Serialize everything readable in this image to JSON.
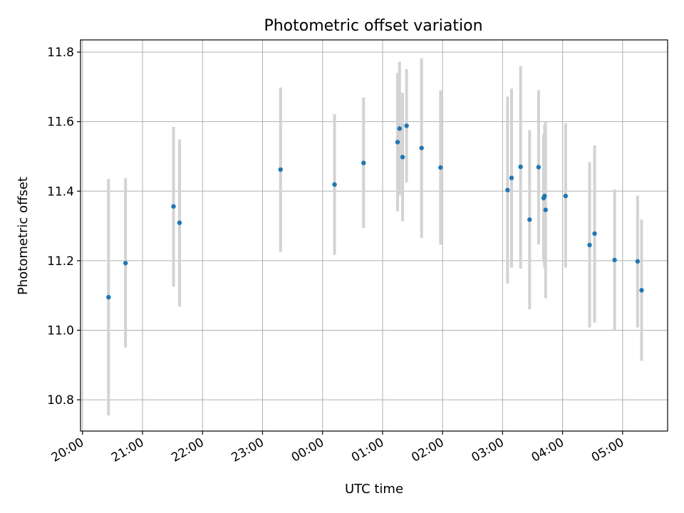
{
  "chart_data": {
    "type": "scatter",
    "title": "Photometric offset variation",
    "xlabel": "UTC time",
    "ylabel": "Photometric offset",
    "x_axis": {
      "kind": "time",
      "range": [
        "19:58",
        "05:45"
      ],
      "day_boundary": "00:00",
      "ticks": [
        "20:00",
        "21:00",
        "22:00",
        "23:00",
        "00:00",
        "01:00",
        "02:00",
        "03:00",
        "04:00",
        "05:00"
      ]
    },
    "y_axis": {
      "range": [
        10.71,
        11.835
      ],
      "ticks": [
        "10.8",
        "11.0",
        "11.2",
        "11.4",
        "11.6",
        "11.8"
      ]
    },
    "grid": true,
    "colors": {
      "point": "#1f77b4",
      "errorbar": "#d3d3d3",
      "grid": "#b0b0b0"
    },
    "series": [
      {
        "points": [
          {
            "x": "20:26",
            "y": 11.095,
            "ylow": 10.755,
            "yhigh": 11.435
          },
          {
            "x": "20:43",
            "y": 11.193,
            "ylow": 10.95,
            "yhigh": 11.437
          },
          {
            "x": "21:31",
            "y": 11.356,
            "ylow": 11.125,
            "yhigh": 11.585
          },
          {
            "x": "21:37",
            "y": 11.309,
            "ylow": 11.068,
            "yhigh": 11.549
          },
          {
            "x": "23:18",
            "y": 11.462,
            "ylow": 11.225,
            "yhigh": 11.698
          },
          {
            "x": "00:12",
            "y": 11.419,
            "ylow": 11.217,
            "yhigh": 11.621
          },
          {
            "x": "00:41",
            "y": 11.481,
            "ylow": 11.294,
            "yhigh": 11.669
          },
          {
            "x": "01:15",
            "y": 11.541,
            "ylow": 11.342,
            "yhigh": 11.74
          },
          {
            "x": "01:17",
            "y": 11.58,
            "ylow": 11.388,
            "yhigh": 11.772
          },
          {
            "x": "01:20",
            "y": 11.498,
            "ylow": 11.313,
            "yhigh": 11.683
          },
          {
            "x": "01:24",
            "y": 11.588,
            "ylow": 11.425,
            "yhigh": 11.751
          },
          {
            "x": "01:39",
            "y": 11.524,
            "ylow": 11.265,
            "yhigh": 11.782
          },
          {
            "x": "01:58",
            "y": 11.468,
            "ylow": 11.246,
            "yhigh": 11.69
          },
          {
            "x": "03:05",
            "y": 11.403,
            "ylow": 11.134,
            "yhigh": 11.672
          },
          {
            "x": "03:09",
            "y": 11.438,
            "ylow": 11.18,
            "yhigh": 11.695
          },
          {
            "x": "03:18",
            "y": 11.47,
            "ylow": 11.177,
            "yhigh": 11.76
          },
          {
            "x": "03:27",
            "y": 11.318,
            "ylow": 11.06,
            "yhigh": 11.575
          },
          {
            "x": "03:36",
            "y": 11.469,
            "ylow": 11.247,
            "yhigh": 11.69
          },
          {
            "x": "03:41",
            "y": 11.38,
            "ylow": 11.196,
            "yhigh": 11.564
          },
          {
            "x": "03:42",
            "y": 11.386,
            "ylow": 11.18,
            "yhigh": 11.592
          },
          {
            "x": "03:43",
            "y": 11.346,
            "ylow": 11.092,
            "yhigh": 11.6
          },
          {
            "x": "04:03",
            "y": 11.386,
            "ylow": 11.18,
            "yhigh": 11.595
          },
          {
            "x": "04:27",
            "y": 11.245,
            "ylow": 11.008,
            "yhigh": 11.483
          },
          {
            "x": "04:32",
            "y": 11.278,
            "ylow": 11.022,
            "yhigh": 11.532
          },
          {
            "x": "04:52",
            "y": 11.202,
            "ylow": 11.0,
            "yhigh": 11.405
          },
          {
            "x": "05:15",
            "y": 11.198,
            "ylow": 11.008,
            "yhigh": 11.387
          },
          {
            "x": "05:19",
            "y": 11.115,
            "ylow": 10.912,
            "yhigh": 11.318
          }
        ]
      }
    ]
  }
}
